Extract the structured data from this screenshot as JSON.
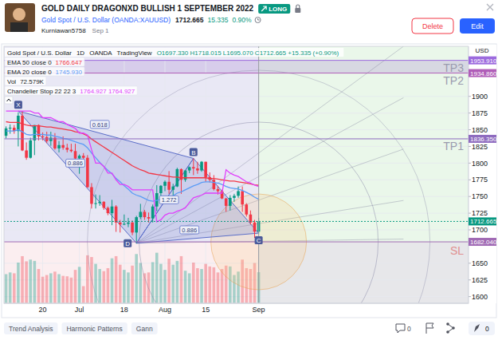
{
  "page": {
    "title": "GOLD DAILY DRAGONXD BULLISH 1 SEPTEMBER 2022",
    "badge": "LONG",
    "symbol": "Gold Spot / U.S. Dollar (OANDA:XAUUSD)",
    "price": "1712.665",
    "change": "15.335",
    "change_pct": "0.90%",
    "author": "Kurniawan5758",
    "date": "Sep 1",
    "buttons": [
      "Delete",
      "Edit"
    ],
    "tags": [
      "Trend Analysis",
      "Harmonic Patterns",
      "Gann"
    ],
    "comments": 0,
    "boosts": 0
  },
  "chart_data": {
    "type": "candlestick",
    "symbol_legend": {
      "name": "Gold Spot / U.S. Dollar",
      "interval": "1D",
      "exchange": "OANDA",
      "source": "TradingView",
      "ohlc": "O1697.330 H1718.015 L1695.070 C1712.665 +15.335 (+0.90%)"
    },
    "axis_unit": "USD",
    "categories": [
      null,
      null,
      null,
      null,
      null,
      null,
      null,
      null,
      null,
      "20",
      null,
      null,
      null,
      null,
      null,
      null,
      null,
      null,
      "Jul",
      null,
      null,
      null,
      null,
      null,
      null,
      null,
      null,
      null,
      null,
      "18",
      null,
      null,
      null,
      null,
      null,
      null,
      null,
      null,
      null,
      "Aug",
      null,
      null,
      null,
      null,
      null,
      null,
      null,
      null,
      null,
      "15",
      null,
      null,
      null,
      null,
      null,
      null,
      null,
      null,
      null,
      null,
      null,
      null,
      "Sep"
    ],
    "xlim": [
      -0.5,
      113.5
    ],
    "ylim": [
      1590,
      1975
    ],
    "yticks": [
      1600,
      1625,
      1650,
      1700,
      1725,
      1750,
      1775,
      1800,
      1825,
      1850,
      1875,
      1900
    ],
    "y2lim": [
      0,
      600
    ],
    "grid": true,
    "series": [
      {
        "name": "Gold Spot / U.S. Dollar",
        "type": "candlestick",
        "open": [
          1841,
          1852,
          1853,
          1848,
          1871,
          1819,
          1808,
          1834,
          1857,
          1840,
          1839,
          1833,
          1838,
          1822,
          1827,
          1823,
          1820,
          1818,
          1807,
          1811,
          1808,
          1764,
          1739,
          1740,
          1742,
          1733,
          1725,
          1735,
          1711,
          1708,
          1709,
          1711,
          1696,
          1719,
          1727,
          1719,
          1717,
          1735,
          1755,
          1766,
          1772,
          1760,
          1765,
          1791,
          1775,
          1789,
          1794,
          1792,
          1789,
          1802,
          1779,
          1775,
          1761,
          1758,
          1747,
          1736,
          1748,
          1751,
          1758,
          1738,
          1723,
          1711,
          1697.33
        ],
        "high": [
          1855,
          1858,
          1857,
          1876,
          1878,
          1831,
          1838,
          1857,
          1858,
          1846,
          1847,
          1847,
          1845,
          1833,
          1840,
          1829,
          1829,
          1829,
          1813,
          1815,
          1812,
          1770,
          1753,
          1752,
          1743,
          1735,
          1745,
          1737,
          1715,
          1723,
          1718,
          1714,
          1721,
          1739,
          1730,
          1726,
          1738,
          1767,
          1767,
          1774,
          1788,
          1769,
          1793,
          1792,
          1789,
          1795,
          1807,
          1802,
          1803,
          1802,
          1786,
          1782,
          1766,
          1760,
          1748,
          1752,
          1754,
          1765,
          1765,
          1740,
          1729,
          1715,
          1718.015
        ],
        "low": [
          1837,
          1844,
          1844,
          1825,
          1818,
          1805,
          1807,
          1812,
          1834,
          1834,
          1830,
          1826,
          1820,
          1816,
          1820,
          1816,
          1816,
          1804,
          1784,
          1805,
          1763,
          1732,
          1732,
          1736,
          1730,
          1722,
          1707,
          1697,
          1696,
          1707,
          1704,
          1692,
          1680,
          1716,
          1715,
          1711,
          1711,
          1728,
          1747,
          1758,
          1754,
          1751,
          1764,
          1754,
          1772,
          1785,
          1782,
          1784,
          1787,
          1772,
          1771,
          1759,
          1753,
          1746,
          1727,
          1729,
          1742,
          1748,
          1727,
          1720,
          1708,
          1688,
          1695.07
        ],
        "close": [
          1852,
          1853,
          1848,
          1871,
          1819,
          1808,
          1834,
          1857,
          1840,
          1839,
          1833,
          1838,
          1822,
          1827,
          1823,
          1820,
          1818,
          1807,
          1811,
          1808,
          1764,
          1739,
          1740,
          1742,
          1733,
          1725,
          1735,
          1711,
          1708,
          1709,
          1711,
          1696,
          1719,
          1727,
          1719,
          1717,
          1735,
          1755,
          1766,
          1772,
          1760,
          1765,
          1791,
          1775,
          1789,
          1794,
          1792,
          1789,
          1802,
          1779,
          1775,
          1761,
          1758,
          1747,
          1736,
          1748,
          1751,
          1758,
          1738,
          1723,
          1711,
          1697.33,
          1712.665
        ]
      },
      {
        "name": "EMA 50 close 0",
        "type": "line",
        "color": "#f23645",
        "legend_value": "1766.647",
        "values": [
          1862,
          1861,
          1861,
          1861,
          1859,
          1857,
          1856,
          1856,
          1856,
          1855,
          1854,
          1854,
          1853,
          1852,
          1851,
          1850,
          1849,
          1847,
          1846,
          1844,
          1841,
          1836,
          1832,
          1828,
          1824,
          1820,
          1816,
          1812,
          1808,
          1804,
          1800,
          1796,
          1793,
          1790,
          1788,
          1785,
          1784,
          1783,
          1782,
          1781,
          1780,
          1779,
          1779,
          1778,
          1778,
          1778,
          1778,
          1778,
          1778,
          1778,
          1777,
          1777,
          1776,
          1775,
          1774,
          1773,
          1773,
          1772,
          1771,
          1770,
          1769,
          1767.5,
          1766.647
        ]
      },
      {
        "name": "EMA 20 close 0",
        "type": "line",
        "color": "#5b9cf6",
        "legend_value": "1745.930",
        "values": [
          1848,
          1848,
          1848,
          1850,
          1847,
          1843,
          1842,
          1843,
          1843,
          1843,
          1842,
          1842,
          1840,
          1839,
          1837,
          1836,
          1834,
          1832,
          1830,
          1828,
          1823,
          1815,
          1808,
          1801,
          1795,
          1789,
          1784,
          1777,
          1772,
          1766,
          1761,
          1755,
          1752,
          1750,
          1747,
          1744,
          1743,
          1744,
          1746,
          1748,
          1749,
          1751,
          1755,
          1757,
          1760,
          1763,
          1766,
          1768,
          1771,
          1772,
          1772,
          1771,
          1770,
          1768,
          1765,
          1763,
          1762,
          1761,
          1759,
          1756,
          1753,
          1749,
          1745.93
        ]
      },
      {
        "name": "Vol",
        "type": "bar",
        "axis": "y2",
        "legend_value": "72.579K",
        "values": [
          68,
          72,
          70,
          95,
          110,
          98,
          102,
          99,
          80,
          62,
          66,
          70,
          74,
          68,
          64,
          63,
          60,
          78,
          85,
          40,
          112,
          108,
          92,
          80,
          75,
          82,
          105,
          110,
          90,
          78,
          72,
          88,
          115,
          94,
          70,
          72,
          96,
          118,
          92,
          78,
          104,
          90,
          99,
          110,
          76,
          70,
          95,
          82,
          80,
          92,
          86,
          84,
          72,
          80,
          88,
          86,
          66,
          74,
          102,
          82,
          80,
          94,
          72.579
        ]
      },
      {
        "name": "Chandelier Stop 22 22 3",
        "type": "line",
        "color": "#e040fb",
        "legend_value": "1764.927  1764.927",
        "values": [
          1878,
          1878,
          1878,
          1878,
          1878,
          1878,
          1878,
          1875,
          1875,
          1868,
          1868,
          1868,
          1865,
          1862,
          1862,
          1858,
          1855,
          1852,
          1845,
          1845,
          1842,
          1820,
          1800,
          1800,
          1795,
          1785,
          1785,
          1775,
          1768,
          1768,
          1765,
          1760,
          1760,
          1760,
          1760,
          1760,
          1760,
          1712,
          1715,
          1722,
          1725,
          1725,
          1728,
          1730,
          1733,
          1741,
          1748,
          1750,
          1752,
          1755,
          1755,
          1755,
          1755,
          1755,
          1790,
          1785,
          1782,
          1780,
          1776,
          1772,
          1770,
          1767,
          1764.927
        ]
      }
    ],
    "levels": [
      {
        "name": "TP3",
        "value": 1953.91,
        "label": "1953.910",
        "color": "#9c6ade"
      },
      {
        "name": "TP2",
        "value": 1934.86,
        "label": "1934.860",
        "color": "#b05db8"
      },
      {
        "name": "TP1",
        "value": 1836.35,
        "label": "1836.350",
        "color": "#8e6bbf"
      },
      {
        "value": 1712.665,
        "label": "1712.665",
        "color": "#089981"
      },
      {
        "name": "SL",
        "value": 1682.04,
        "label": "1682.040",
        "color": "#a06ab4"
      }
    ],
    "pattern": {
      "points": [
        {
          "label": "X",
          "x": 3,
          "y": 1878
        },
        {
          "label": "D",
          "x": 32,
          "y": 1680
        },
        {
          "label": "B",
          "x": 46,
          "y": 1807
        },
        {
          "label": "C",
          "x": 62,
          "y": 1695.07
        }
      ],
      "ratios": [
        {
          "label": "0.618",
          "x": 23,
          "y": 1858
        },
        {
          "label": "0.886",
          "x": 17,
          "y": 1800
        },
        {
          "label": "1.272",
          "x": 40,
          "y": 1745
        },
        {
          "label": "0.886",
          "x": 45,
          "y": 1700
        }
      ]
    }
  }
}
